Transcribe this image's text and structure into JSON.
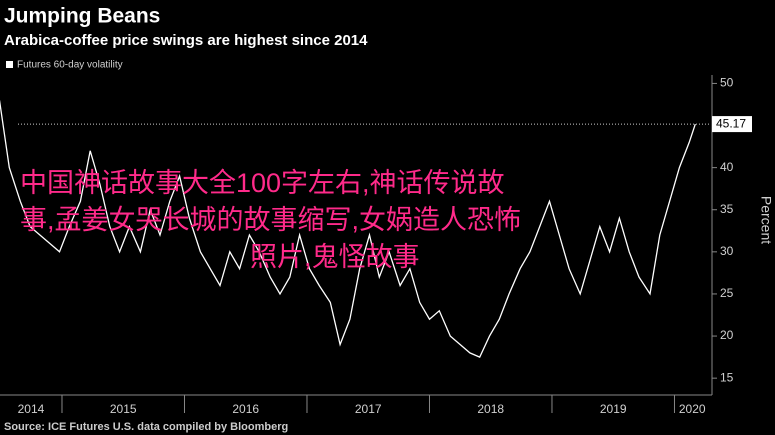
{
  "chart_data": {
    "type": "line",
    "title": "Jumping Beans",
    "subtitle": "Arabica-coffee price swings are highest since 2014",
    "source": "Source: ICE Futures U.S. data compiled by Bloomberg",
    "y_label": "Percent",
    "overlay_text": [
      "中国神话故事大全100字左右,神话传说故",
      "事,孟姜女哭长城的故事缩写,女娲造人恐怖",
      "照片,鬼怪故事"
    ],
    "x": [
      2014.49,
      2014.57,
      2014.66,
      2014.74,
      2014.82,
      2014.9,
      2014.98,
      2015.06,
      2015.15,
      2015.23,
      2015.31,
      2015.39,
      2015.47,
      2015.55,
      2015.64,
      2015.72,
      2015.8,
      2015.88,
      2015.96,
      2016.04,
      2016.13,
      2016.21,
      2016.29,
      2016.37,
      2016.45,
      2016.53,
      2016.61,
      2016.7,
      2016.78,
      2016.86,
      2016.94,
      2017.02,
      2017.1,
      2017.19,
      2017.27,
      2017.35,
      2017.43,
      2017.51,
      2017.59,
      2017.67,
      2017.76,
      2017.84,
      2017.92,
      2018.0,
      2018.08,
      2018.17,
      2018.25,
      2018.33,
      2018.41,
      2018.49,
      2018.57,
      2018.65,
      2018.74,
      2018.82,
      2018.9,
      2018.98,
      2019.06,
      2019.14,
      2019.23,
      2019.31,
      2019.39,
      2019.47,
      2019.55,
      2019.63,
      2019.71,
      2019.8,
      2019.88,
      2019.96,
      2020.04,
      2020.12,
      2020.17
    ],
    "series": [
      {
        "name": "Futures 60-day volatility",
        "color": "#ffffff",
        "values": [
          48,
          40,
          36,
          33,
          32,
          31,
          30,
          33,
          36,
          42,
          38,
          33,
          30,
          33,
          30,
          35,
          32,
          36,
          39,
          34,
          30,
          28,
          26,
          30,
          28,
          32,
          30,
          27,
          25,
          27,
          32,
          28,
          26,
          24,
          19,
          22,
          28,
          32,
          27,
          30,
          26,
          28,
          24,
          22,
          23,
          20,
          19,
          18,
          17.5,
          20,
          22,
          25,
          28,
          30,
          33,
          36,
          32,
          28,
          25,
          29,
          33,
          30,
          34,
          30,
          27,
          25,
          32,
          36,
          40,
          43,
          45.17
        ]
      }
    ],
    "xlim": [
      2014.494,
      2020.29
    ],
    "xticks": [
      2014,
      2015,
      2016,
      2017,
      2018,
      2019,
      2020
    ],
    "ylim": [
      13,
      51
    ],
    "yticks": [
      15,
      20,
      25,
      30,
      35,
      40,
      45,
      50
    ],
    "grid": false
  }
}
